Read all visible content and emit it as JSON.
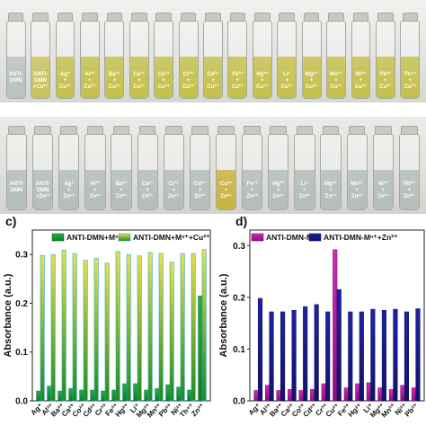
{
  "photo_rows": [
    {
      "vials": [
        {
          "label": "ANTI-\nDMN",
          "tint": "#b9c2bf"
        },
        {
          "label": "ANTI-\nDMN\n+Cu²⁺",
          "tint": "#c9c25a"
        },
        {
          "label": "Ag⁺\n+\nCu²⁺",
          "tint": "#c5c048"
        },
        {
          "label": "Al³⁺\n+\nCu²⁺",
          "tint": "#c5c048"
        },
        {
          "label": "Ba²⁺\n+\nCu²⁺",
          "tint": "#c5c048"
        },
        {
          "label": "Ca²⁺\n+\nCu²⁺",
          "tint": "#c5c048"
        },
        {
          "label": "Co²⁺\n+\nCu²⁺",
          "tint": "#c5c048"
        },
        {
          "label": "Cr³⁺\n+\nCu²⁺",
          "tint": "#c5c048"
        },
        {
          "label": "Cd²⁺\n+\nCu²⁺",
          "tint": "#c5c048"
        },
        {
          "label": "Fe³⁺\n+\nCu²⁺",
          "tint": "#c5c048"
        },
        {
          "label": "Hg²⁺\n+\nCu²⁺",
          "tint": "#c5c048"
        },
        {
          "label": "Li⁺\n+\nCu²⁺",
          "tint": "#c5c048"
        },
        {
          "label": "Mg²⁺\n+\nCu²⁺",
          "tint": "#c5c048"
        },
        {
          "label": "Mn²⁺\n+\nCu²⁺",
          "tint": "#c5c048"
        },
        {
          "label": "Ni²⁺\n+\nCu²⁺",
          "tint": "#c5c048"
        },
        {
          "label": "Pb²⁺\n+\nCu²⁺",
          "tint": "#c5c048"
        },
        {
          "label": "Th⁴⁺\n+\nCu²⁺",
          "tint": "#c5c048"
        }
      ]
    },
    {
      "vials": [
        {
          "label": "ANTI-\nDMN",
          "tint": "#b4bdbc"
        },
        {
          "label": "ANTI-\nDMN\n+Zn²⁺",
          "tint": "#b4bdbc"
        },
        {
          "label": "Ag⁺\n+\nZn²⁺",
          "tint": "#b4bdbc"
        },
        {
          "label": "Al³⁺\n+\nZn²⁺",
          "tint": "#b4bdbc"
        },
        {
          "label": "Ba²⁺\n+\nZn²⁺",
          "tint": "#b4bdbc"
        },
        {
          "label": "Ca²⁺\n+\nZn²⁺",
          "tint": "#b4bdbc"
        },
        {
          "label": "Cr³⁺\n+\nZn²⁺",
          "tint": "#b4bdbc"
        },
        {
          "label": "Cd²⁺\n+\nZn²⁺",
          "tint": "#b4bdbc"
        },
        {
          "label": "Cu²⁺\n+\nZn²⁺",
          "tint": "#c8b23c"
        },
        {
          "label": "Fe³⁺\n+\nZn²⁺",
          "tint": "#b4bdbc"
        },
        {
          "label": "Hg²⁺\n+\nZn²⁺",
          "tint": "#b4bdbc"
        },
        {
          "label": "Li⁺\n+\nZn²⁺",
          "tint": "#b4bdbc"
        },
        {
          "label": "Mg²⁺\n+\nZn²⁺",
          "tint": "#b4bdbc"
        },
        {
          "label": "Mn²⁺\n+\nZn²⁺",
          "tint": "#b4bdbc"
        },
        {
          "label": "Ni²⁺\n+\nZn²⁺",
          "tint": "#b4bdbc"
        },
        {
          "label": "Pb²⁺\n+\nZn²⁺",
          "tint": "#b4bdbc"
        }
      ]
    }
  ],
  "panel_labels": [
    "c)",
    "d)"
  ],
  "chart_data": [
    {
      "type": "bar",
      "ylabel": "Absorbance (a.u.)",
      "ylim": [
        0,
        0.35
      ],
      "yticks": [
        0.0,
        0.1,
        0.2,
        0.3
      ],
      "ytick_labels": [
        "0.0",
        "0.1",
        "0.2",
        "0.3"
      ],
      "categories": [
        "Ag⁺",
        "Al³⁺",
        "Ba²⁺",
        "Ca²⁺",
        "Co²⁺",
        "Cd²⁺",
        "Cr³⁺",
        "Fe³⁺",
        "Hg²⁺",
        "Li⁺",
        "Mg²⁺",
        "Mn²⁺",
        "Pb²⁺",
        "Ni²⁺",
        "Th⁴⁺",
        "Zn²⁺"
      ],
      "legend_position": "top",
      "series": [
        {
          "name": "ANTI-DMN+Mⁿ⁺",
          "color": "#1db34a",
          "values": [
            0.02,
            0.03,
            0.02,
            0.025,
            0.022,
            0.022,
            0.02,
            0.022,
            0.035,
            0.035,
            0.022,
            0.025,
            0.033,
            0.028,
            0.022,
            0.215
          ]
        },
        {
          "name": "ANTI-DMN+Mⁿ⁺+Cu²⁺",
          "color": "#e9e04a",
          "values": [
            0.298,
            0.3,
            0.309,
            0.302,
            0.288,
            0.292,
            0.282,
            0.306,
            0.3,
            0.297,
            0.304,
            0.302,
            0.284,
            0.302,
            0.302,
            0.31
          ]
        }
      ]
    },
    {
      "type": "bar",
      "ylabel": "Absorbance (a.u.)",
      "ylim": [
        0,
        0.33
      ],
      "yticks": [
        0.0,
        0.1,
        0.2,
        0.3
      ],
      "ytick_labels": [
        "0.0",
        "0.1",
        "0.2",
        "0.3"
      ],
      "categories": [
        "Ag⁺",
        "Al³⁺",
        "Ba²⁺",
        "Ca²⁺",
        "Co²⁺",
        "Cd²⁺",
        "Cr³⁺",
        "Cu²⁺",
        "Fe³⁺",
        "Hg²⁺",
        "Li⁺",
        "Mg²⁺",
        "Mn²⁺",
        "Ni²⁺",
        "Pb²⁺"
      ],
      "legend_position": "top",
      "series": [
        {
          "name": "ANTI-DMN-Mⁿ⁺",
          "color": "#d62ab4",
          "values": [
            0.02,
            0.03,
            0.02,
            0.022,
            0.02,
            0.022,
            0.033,
            0.292,
            0.025,
            0.033,
            0.035,
            0.025,
            0.022,
            0.03,
            0.025
          ]
        },
        {
          "name": "ANTI-DMN-Mⁿ⁺+Zn²⁺",
          "color": "#1f22a8",
          "values": [
            0.198,
            0.172,
            0.172,
            0.175,
            0.182,
            0.186,
            0.172,
            0.215,
            0.172,
            0.172,
            0.177,
            0.175,
            0.177,
            0.172,
            0.178
          ]
        }
      ]
    }
  ]
}
